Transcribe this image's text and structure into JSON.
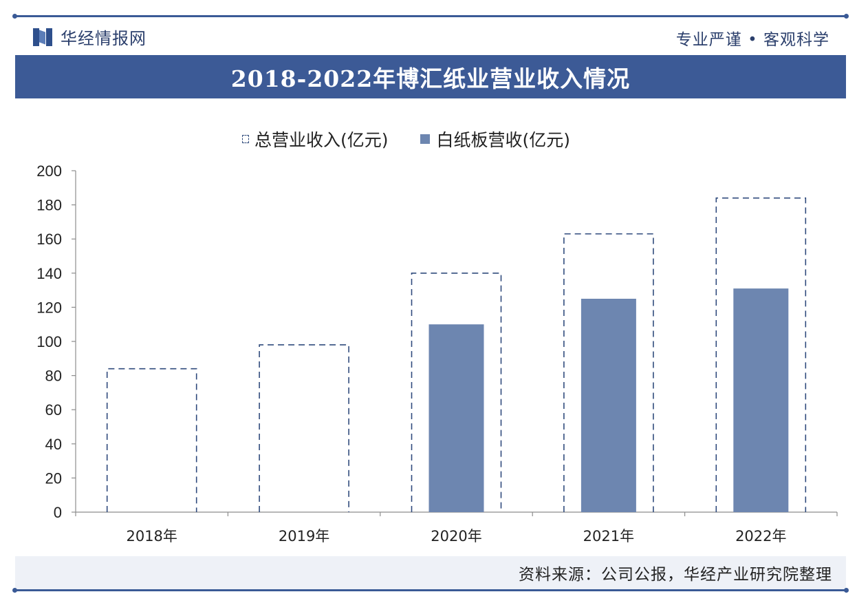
{
  "header": {
    "brand": "华经情报网",
    "slogan": "专业严谨 • 客观科学",
    "title": "2018-2022年博汇纸业营业收入情况"
  },
  "legend": [
    {
      "label": "总营业收入(亿元)",
      "style": "dashed-outline"
    },
    {
      "label": "白纸板营收(亿元)",
      "style": "solid"
    }
  ],
  "chart_data": {
    "type": "bar",
    "categories": [
      "2018年",
      "2019年",
      "2020年",
      "2021年",
      "2022年"
    ],
    "series": [
      {
        "name": "总营业收入(亿元)",
        "values": [
          84,
          98,
          140,
          163,
          184
        ],
        "color": "#2f4a7c",
        "style": "dashed-outline"
      },
      {
        "name": "白纸板营收(亿元)",
        "values": [
          null,
          null,
          110,
          125,
          131
        ],
        "color": "#6d86b0",
        "style": "solid"
      }
    ],
    "ylim": [
      0,
      200
    ],
    "yticks": [
      0,
      20,
      40,
      60,
      80,
      100,
      120,
      140,
      160,
      180,
      200
    ],
    "grid": false,
    "legend_position": "top"
  },
  "footer": {
    "source": "资料来源：公司公报，华经产业研究院整理"
  }
}
